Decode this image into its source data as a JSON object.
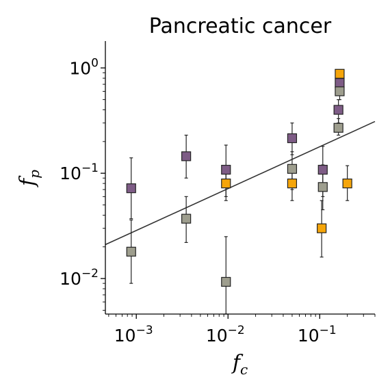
{
  "chart_data": {
    "type": "scatter",
    "title": "Pancreatic cancer",
    "xlabel_base": "f",
    "xlabel_sub": "c",
    "ylabel_base": "f",
    "ylabel_sub": "p",
    "xscale": "log",
    "yscale": "log",
    "xlim": [
      0.00046,
      0.4
    ],
    "ylim": [
      0.0046,
      1.8
    ],
    "grid": false,
    "legend": "none",
    "x_ticks": [
      {
        "base": "10",
        "exp": "−3",
        "value": 0.001
      },
      {
        "base": "10",
        "exp": "−2",
        "value": 0.01
      },
      {
        "base": "10",
        "exp": "−1",
        "value": 0.1
      }
    ],
    "y_ticks": [
      {
        "base": "10",
        "exp": "−2",
        "value": 0.01
      },
      {
        "base": "10",
        "exp": "−1",
        "value": 0.1
      },
      {
        "base": "10",
        "exp": "0",
        "value": 1
      }
    ],
    "fit_line": {
      "x": [
        0.00046,
        0.4
      ],
      "y": [
        0.021,
        0.31
      ],
      "color": "#333333"
    },
    "series": [
      {
        "color": "#7e5c86",
        "points": [
          {
            "x": 0.00088,
            "y": 0.072,
            "lo": 0.037,
            "hi": 0.14
          },
          {
            "x": 0.0035,
            "y": 0.145,
            "lo": 0.09,
            "hi": 0.23
          },
          {
            "x": 0.0095,
            "y": 0.108,
            "lo": 0.06,
            "hi": 0.185
          },
          {
            "x": 0.05,
            "y": 0.215,
            "lo": 0.15,
            "hi": 0.3
          },
          {
            "x": 0.108,
            "y": 0.108,
            "lo": 0.06,
            "hi": 0.18
          },
          {
            "x": 0.16,
            "y": 0.4,
            "lo": 0.3,
            "hi": 0.5
          },
          {
            "x": 0.165,
            "y": 0.72,
            "lo": 0.58,
            "hi": 0.85
          }
        ]
      },
      {
        "color": "#9e9e8e",
        "points": [
          {
            "x": 0.00088,
            "y": 0.018,
            "lo": 0.009,
            "hi": 0.036
          },
          {
            "x": 0.0035,
            "y": 0.037,
            "lo": 0.022,
            "hi": 0.06
          },
          {
            "x": 0.0095,
            "y": 0.0093,
            "lo": 0.0046,
            "hi": 0.025
          },
          {
            "x": 0.05,
            "y": 0.11,
            "lo": 0.07,
            "hi": 0.16
          },
          {
            "x": 0.108,
            "y": 0.074,
            "lo": 0.045,
            "hi": 0.12
          },
          {
            "x": 0.16,
            "y": 0.27,
            "lo": 0.23,
            "hi": 0.33
          },
          {
            "x": 0.165,
            "y": 0.6,
            "lo": 0.5,
            "hi": 0.7
          }
        ]
      },
      {
        "color": "#f5a50a",
        "points": [
          {
            "x": 0.0095,
            "y": 0.08,
            "lo": 0.055,
            "hi": 0.11
          },
          {
            "x": 0.05,
            "y": 0.08,
            "lo": 0.055,
            "hi": 0.11
          },
          {
            "x": 0.105,
            "y": 0.03,
            "lo": 0.016,
            "hi": 0.055
          },
          {
            "x": 0.165,
            "y": 0.88,
            "lo": 0.8,
            "hi": 0.95
          },
          {
            "x": 0.2,
            "y": 0.08,
            "lo": 0.055,
            "hi": 0.118
          }
        ]
      }
    ]
  }
}
